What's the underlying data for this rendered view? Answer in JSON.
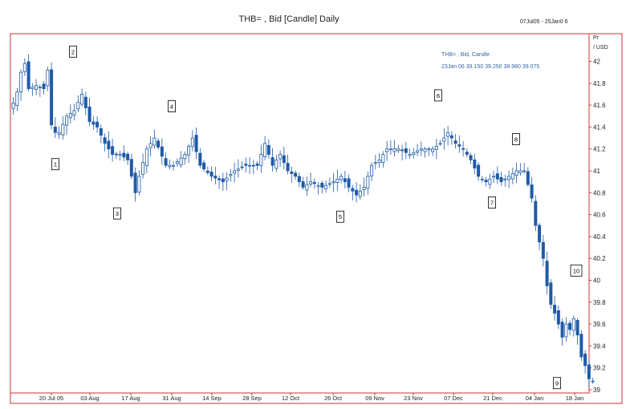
{
  "header": {
    "title": "THB= , Bid [Candle] Daily",
    "date_range": "07Jul05 - 25Jan0   6"
  },
  "axis": {
    "unit_line1": "Pr",
    "unit_line2": "/ USD"
  },
  "legend": {
    "series_name": "THB= , Bid, Candle",
    "latest_values": "23Jan 06  39.150  39.250  38.980  39.075"
  },
  "colors": {
    "frame": "#cc3333",
    "candle": "#1f5aa8",
    "text": "#222222",
    "legend_text": "#3366aa"
  },
  "chart_data": {
    "type": "candlestick",
    "title": "THB= , Bid [Candle] Daily",
    "ylim": [
      38.95,
      42.22
    ],
    "y_ticks": [
      42,
      41.8,
      41.6,
      41.4,
      41.2,
      41,
      40.8,
      40.6,
      40.4,
      40.2,
      40,
      39.8,
      39.6,
      39.4,
      39.2,
      39
    ],
    "x_ticks": [
      "20 Jul 05",
      "03 Aug",
      "17 Aug",
      "31 Aug",
      "14 Sep",
      "28 Sep",
      "12 Oct",
      "26 Oct",
      "09 Nov",
      "23 Nov",
      "07 Dec",
      "21 Dec",
      "04 Jan",
      "18 Jan"
    ],
    "key_points": [
      {
        "label": "1",
        "value": 41.2
      },
      {
        "label": "2",
        "value": 41.95
      },
      {
        "label": "3",
        "value": 40.75
      },
      {
        "label": "4",
        "value": 41.45
      },
      {
        "label": "5",
        "value": 40.72
      },
      {
        "label": "6",
        "value": 41.55
      },
      {
        "label": "7",
        "value": 40.85
      },
      {
        "label": "8",
        "value": 41.15
      },
      {
        "label": "9",
        "value": 39.2
      },
      {
        "label": "10",
        "value": 39.95
      }
    ],
    "close_path": [
      [
        0,
        41.62
      ],
      [
        1,
        41.72
      ],
      [
        2,
        41.9
      ],
      [
        3,
        41.98
      ],
      [
        4,
        41.75
      ],
      [
        6,
        41.78
      ],
      [
        8,
        41.75
      ],
      [
        9,
        41.92
      ],
      [
        10,
        41.42
      ],
      [
        11,
        41.35
      ],
      [
        12,
        41.35
      ],
      [
        14,
        41.5
      ],
      [
        16,
        41.55
      ],
      [
        18,
        41.7
      ],
      [
        20,
        41.45
      ],
      [
        22,
        41.4
      ],
      [
        24,
        41.25
      ],
      [
        26,
        41.15
      ],
      [
        28,
        41.15
      ],
      [
        30,
        41.1
      ],
      [
        31,
        40.95
      ],
      [
        32,
        40.8
      ],
      [
        33,
        40.95
      ],
      [
        35,
        41.2
      ],
      [
        37,
        41.3
      ],
      [
        40,
        41.05
      ],
      [
        42,
        41.05
      ],
      [
        45,
        41.15
      ],
      [
        47,
        41.3
      ],
      [
        49,
        41.05
      ],
      [
        52,
        40.95
      ],
      [
        55,
        40.9
      ],
      [
        58,
        41.0
      ],
      [
        61,
        41.05
      ],
      [
        64,
        41.05
      ],
      [
        66,
        41.25
      ],
      [
        68,
        41.05
      ],
      [
        70,
        41.15
      ],
      [
        72,
        41.0
      ],
      [
        74,
        40.95
      ],
      [
        76,
        40.85
      ],
      [
        78,
        40.9
      ],
      [
        81,
        40.85
      ],
      [
        84,
        40.9
      ],
      [
        86,
        40.95
      ],
      [
        88,
        40.85
      ],
      [
        90,
        40.78
      ],
      [
        92,
        40.85
      ],
      [
        94,
        41.05
      ],
      [
        96,
        41.1
      ],
      [
        98,
        41.2
      ],
      [
        101,
        41.2
      ],
      [
        104,
        41.15
      ],
      [
        107,
        41.2
      ],
      [
        110,
        41.2
      ],
      [
        112,
        41.25
      ],
      [
        114,
        41.35
      ],
      [
        116,
        41.25
      ],
      [
        118,
        41.2
      ],
      [
        120,
        41.1
      ],
      [
        122,
        40.95
      ],
      [
        124,
        40.9
      ],
      [
        126,
        40.95
      ],
      [
        128,
        40.9
      ],
      [
        130,
        40.95
      ],
      [
        132,
        41.0
      ],
      [
        134,
        41.0
      ],
      [
        136,
        40.75
      ],
      [
        137,
        40.5
      ],
      [
        138,
        40.35
      ],
      [
        139,
        40.2
      ],
      [
        140,
        39.95
      ],
      [
        141,
        39.78
      ],
      [
        142,
        39.7
      ],
      [
        143,
        39.6
      ],
      [
        144,
        39.48
      ],
      [
        145,
        39.6
      ],
      [
        146,
        39.55
      ],
      [
        147,
        39.65
      ],
      [
        148,
        39.5
      ],
      [
        149,
        39.3
      ],
      [
        150,
        39.22
      ],
      [
        151,
        39.1
      ],
      [
        152,
        39.08
      ]
    ]
  }
}
